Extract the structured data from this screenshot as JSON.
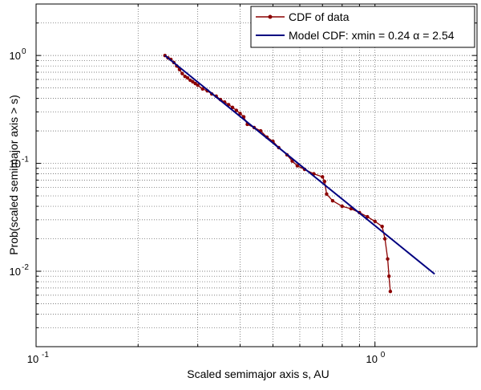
{
  "chart_data": {
    "type": "line",
    "xlabel": "Scaled semimajor axis s, AU",
    "ylabel": "Prob(scaled semimajor axis > s)",
    "xscale": "log",
    "yscale": "log",
    "xlim": [
      0.1,
      2.0
    ],
    "ylim": [
      0.002,
      3.0
    ],
    "grid": true,
    "legend_position": "top-right",
    "x_ticks": [
      {
        "value": 0.1,
        "base": "10",
        "exp": "-1"
      },
      {
        "value": 1,
        "base": "10",
        "exp": "0"
      }
    ],
    "y_ticks": [
      {
        "value": 0.01,
        "base": "10",
        "exp": "-2"
      },
      {
        "value": 0.1,
        "base": "10",
        "exp": "-1"
      },
      {
        "value": 1,
        "base": "10",
        "exp": "0"
      }
    ],
    "series": [
      {
        "name": "CDF of data",
        "color": "#8b0000",
        "marker": "dot",
        "x": [
          0.24,
          0.245,
          0.25,
          0.255,
          0.26,
          0.265,
          0.27,
          0.275,
          0.28,
          0.285,
          0.29,
          0.295,
          0.3,
          0.31,
          0.32,
          0.33,
          0.34,
          0.35,
          0.36,
          0.37,
          0.38,
          0.39,
          0.4,
          0.41,
          0.42,
          0.44,
          0.46,
          0.48,
          0.5,
          0.52,
          0.55,
          0.57,
          0.59,
          0.62,
          0.66,
          0.7,
          0.71,
          0.72,
          0.75,
          0.8,
          0.85,
          0.9,
          0.95,
          1.0,
          1.05,
          1.07,
          1.09,
          1.1,
          1.11
        ],
        "y": [
          1.0,
          0.95,
          0.92,
          0.86,
          0.8,
          0.74,
          0.68,
          0.64,
          0.62,
          0.59,
          0.57,
          0.55,
          0.53,
          0.49,
          0.47,
          0.44,
          0.42,
          0.39,
          0.37,
          0.35,
          0.33,
          0.31,
          0.29,
          0.27,
          0.23,
          0.215,
          0.2,
          0.175,
          0.16,
          0.14,
          0.12,
          0.105,
          0.095,
          0.088,
          0.08,
          0.075,
          0.068,
          0.052,
          0.045,
          0.04,
          0.038,
          0.035,
          0.032,
          0.029,
          0.026,
          0.02,
          0.013,
          0.009,
          0.0065
        ]
      },
      {
        "name": "Model CDF: xmin = 0.24 α = 2.54",
        "color": "#000080",
        "marker": "none",
        "x": [
          0.24,
          1.5
        ],
        "y": [
          1.0,
          0.00943
        ]
      }
    ]
  }
}
